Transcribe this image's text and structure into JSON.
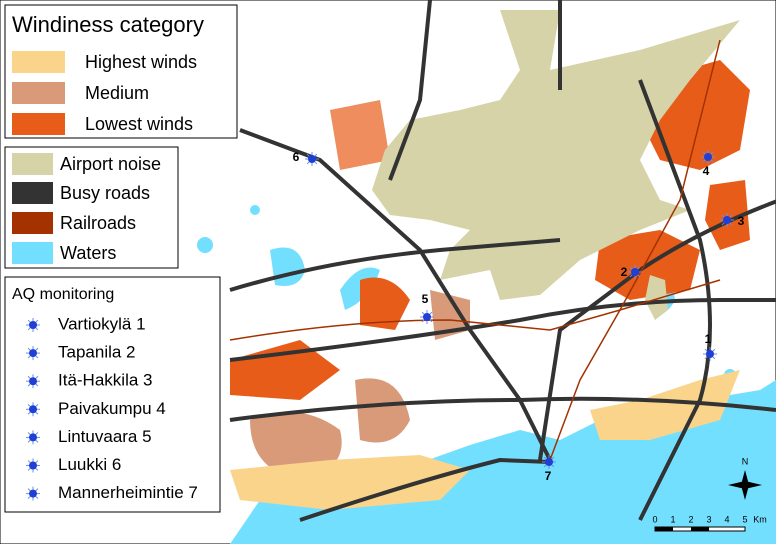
{
  "windiness_legend": {
    "title": "Windiness category",
    "items": [
      "Highest winds",
      "Medium",
      "Lowest winds"
    ]
  },
  "layers_legend": {
    "items": [
      "Airport noise",
      "Busy roads",
      "Railroads",
      "Waters"
    ]
  },
  "aq_monitoring": {
    "title": "AQ monitoring",
    "stations": [
      {
        "name": "Vartiokylä 1",
        "map_label": "1"
      },
      {
        "name": "Tapanila 2",
        "map_label": "2"
      },
      {
        "name": "Itä-Hakkila 3",
        "map_label": "3"
      },
      {
        "name": "Paivakumpu 4",
        "map_label": "4"
      },
      {
        "name": "Lintuvaara 5",
        "map_label": "5"
      },
      {
        "name": "Luukki 6",
        "map_label": "6"
      },
      {
        "name": "Mannerheimintie 7",
        "map_label": "7"
      }
    ]
  },
  "north_arrow": "N",
  "scale_bar": [
    "0",
    "1",
    "2",
    "3",
    "4",
    "5",
    "Km"
  ]
}
